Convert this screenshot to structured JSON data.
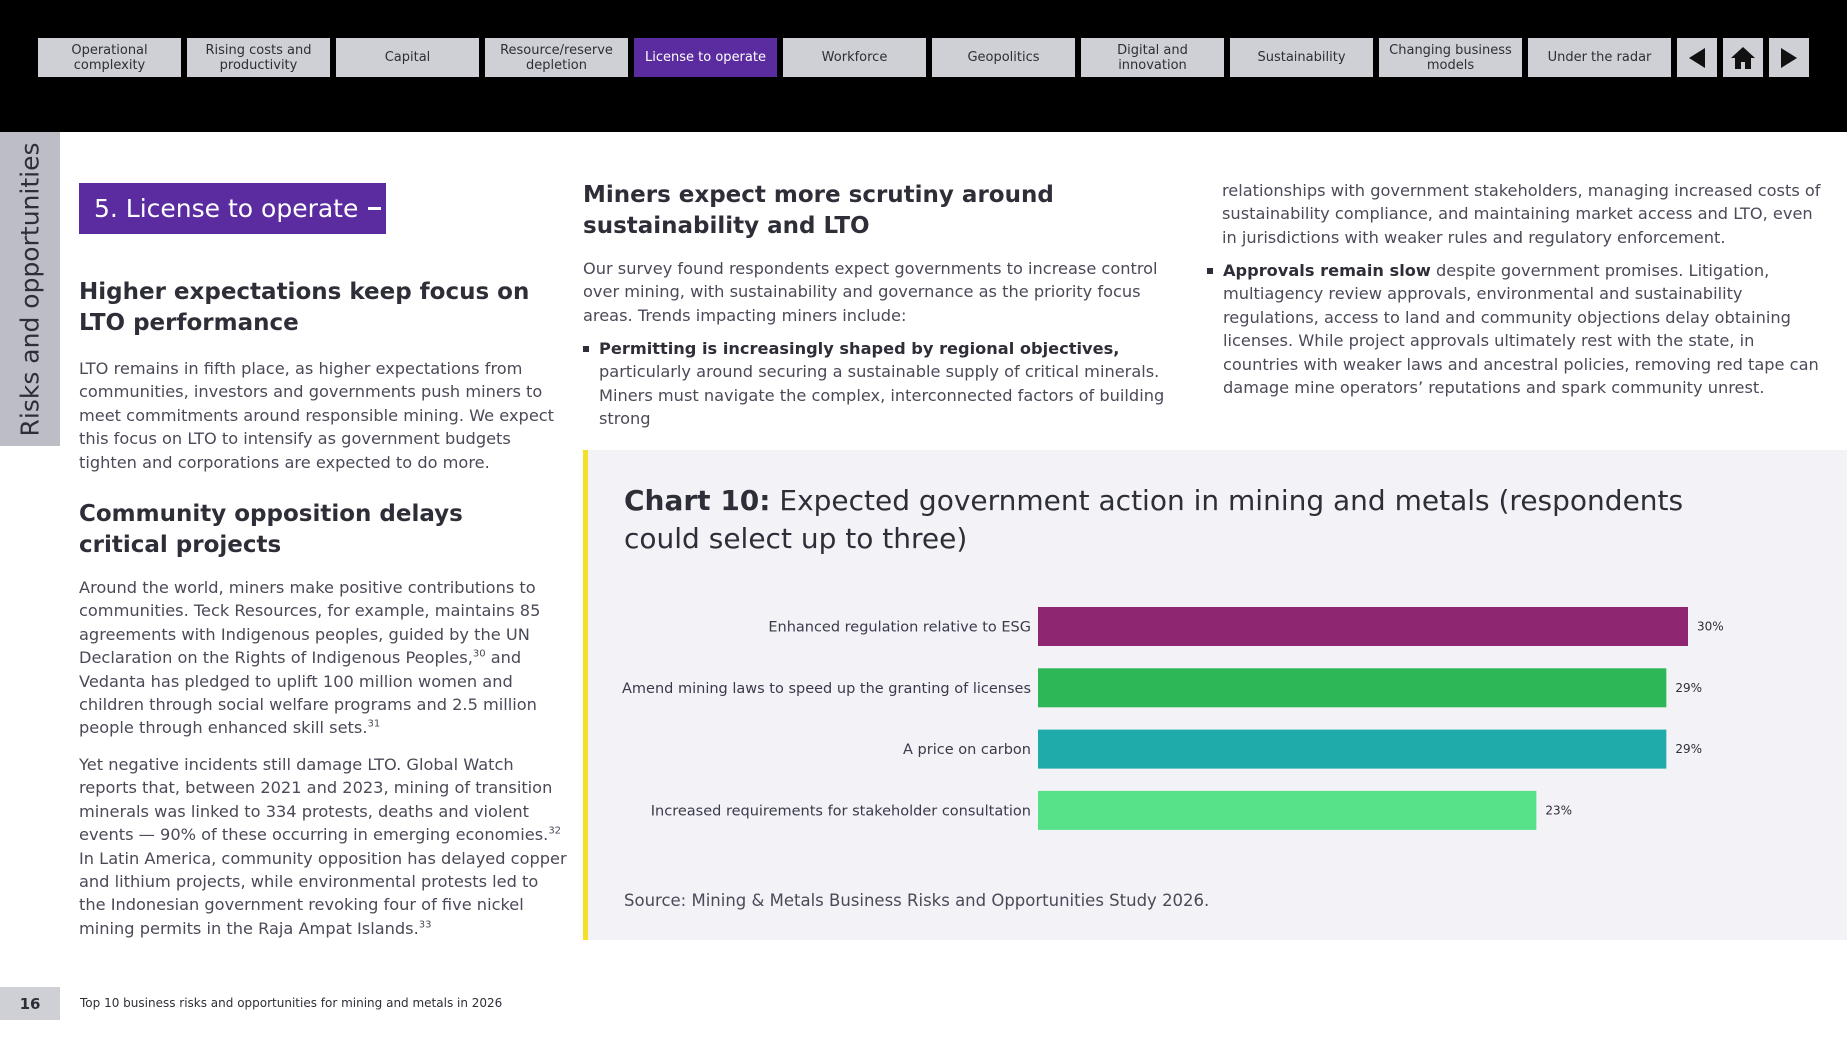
{
  "nav": {
    "tabs": [
      {
        "label": "Operational complexity",
        "active": false
      },
      {
        "label": "Rising costs and productivity",
        "active": false
      },
      {
        "label": "Capital",
        "active": false
      },
      {
        "label": "Resource/reserve depletion",
        "active": false
      },
      {
        "label": "License to operate",
        "active": true
      },
      {
        "label": "Workforce",
        "active": false
      },
      {
        "label": "Geopolitics",
        "active": false
      },
      {
        "label": "Digital and innovation",
        "active": false
      },
      {
        "label": "Sustainability",
        "active": false
      },
      {
        "label": "Changing business models",
        "active": false
      },
      {
        "label": "Under the radar",
        "active": false
      }
    ],
    "controls": [
      "previous-icon",
      "home-icon",
      "next-icon"
    ]
  },
  "side_tab": "Risks and opportunities",
  "section_badge": "5. License to operate",
  "left": {
    "heading1": "Higher expectations keep focus on LTO performance",
    "para1": "LTO remains in fifth place, as higher expectations from communities, investors and governments push miners to meet commitments around responsible mining. We expect this focus on LTO to intensify as government budgets tighten and corporations are expected to do more.",
    "heading2": "Community opposition delays critical projects",
    "para2": "Around the world, miners make positive contributions to communities. Teck Resources, for example, maintains 85 agreements with Indigenous peoples, guided by the UN Declaration on the Rights of Indigenous Peoples,",
    "para2_ref1": "30",
    "para2_cont": " and Vedanta has pledged to uplift 100 million women and children through social welfare programs and 2.5 million people through enhanced skill sets.",
    "para2_ref2": "31",
    "para3": "Yet negative incidents still damage LTO. Global Watch reports that, between 2021 and 2023, mining of transition minerals was linked to 334 protests, deaths and violent events — 90% of these occurring in emerging economies.",
    "para3_ref1": "32",
    "para3_cont": " In Latin America, community opposition has delayed copper and lithium projects, while environmental protests led to the Indonesian government revoking four of five nickel mining permits in the Raja Ampat Islands.",
    "para3_ref2": "33"
  },
  "middle": {
    "heading": "Miners expect more scrutiny around sustainability and LTO",
    "para": "Our survey found respondents expect governments to increase control over mining, with sustainability and governance as the priority focus areas. Trends impacting miners include:",
    "bullet1_strong": "Permitting is increasingly shaped by regional objectives,",
    "bullet1_text": " particularly around securing a sustainable supply of critical minerals. Miners must navigate the complex, interconnected factors of building strong"
  },
  "right": {
    "para_cont": "relationships with government stakeholders, managing increased costs of sustainability compliance, and maintaining market access and LTO, even in jurisdictions with weaker rules and regulatory enforcement.",
    "bullet2_strong": "Approvals remain slow",
    "bullet2_text": " despite government promises. Litigation, multiagency review approvals, environmental and sustainability regulations, access to land and community objections delay obtaining licenses. While project approvals ultimately rest with the state, in countries with weaker laws and ancestral policies, removing red tape can damage mine operators’ reputations and spark community unrest."
  },
  "chart": {
    "label": "Chart 10:",
    "title": " Expected government action in mining and metals (respondents could select up to three)",
    "source": "Source: Mining & Metals Business Risks and Opportunities Study 2026."
  },
  "chart_data": {
    "type": "bar",
    "orientation": "horizontal",
    "categories": [
      "Enhanced regulation relative to ESG",
      "Amend mining laws to speed up the granting of licenses",
      "A price on carbon",
      "Increased requirements for stakeholder consultation"
    ],
    "values": [
      30,
      29,
      29,
      23
    ],
    "value_labels": [
      "30%",
      "29%",
      "29%",
      "23%"
    ],
    "colors": [
      "#8e2672",
      "#2db757",
      "#1fabaa",
      "#57e188"
    ],
    "unit": "%",
    "grid": false
  },
  "footer": {
    "page_number": "16",
    "title": "Top 10 business risks and opportunities for mining and metals in 2026"
  }
}
